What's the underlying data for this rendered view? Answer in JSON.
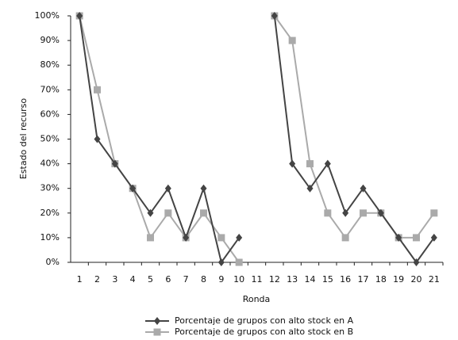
{
  "chart_data": {
    "type": "line",
    "y_label": "Estado del recurso",
    "x_label": "Ronda",
    "categories": [
      "1",
      "2",
      "3",
      "4",
      "5",
      "6",
      "7",
      "8",
      "9",
      "10",
      "11",
      "12",
      "13",
      "14",
      "15",
      "16",
      "17",
      "18",
      "19",
      "20",
      "21"
    ],
    "series": [
      {
        "name": "Porcentaje de grupos con alto stock en A",
        "color": "#444444",
        "marker": "diamond",
        "values": [
          100,
          50,
          40,
          30,
          20,
          30,
          10,
          30,
          0,
          10,
          null,
          100,
          40,
          30,
          40,
          20,
          30,
          20,
          10,
          0,
          10
        ]
      },
      {
        "name": "Porcentaje de grupos con alto stock en B",
        "color": "#aaaaaa",
        "marker": "square",
        "values": [
          100,
          70,
          40,
          30,
          10,
          20,
          10,
          20,
          10,
          0,
          null,
          100,
          90,
          40,
          20,
          10,
          20,
          20,
          10,
          10,
          20
        ]
      }
    ],
    "ylim": [
      0,
      100
    ],
    "yticks": [
      {
        "value": 0,
        "label": "0%"
      },
      {
        "value": 10,
        "label": "10%"
      },
      {
        "value": 20,
        "label": "20%"
      },
      {
        "value": 30,
        "label": "30%"
      },
      {
        "value": 40,
        "label": "40%"
      },
      {
        "value": 50,
        "label": "50%"
      },
      {
        "value": 60,
        "label": "60%"
      },
      {
        "value": 70,
        "label": "70%"
      },
      {
        "value": 80,
        "label": "80%"
      },
      {
        "value": 90,
        "label": "90%"
      },
      {
        "value": 100,
        "label": "100%"
      }
    ],
    "grid": false,
    "legend": "bottom"
  }
}
